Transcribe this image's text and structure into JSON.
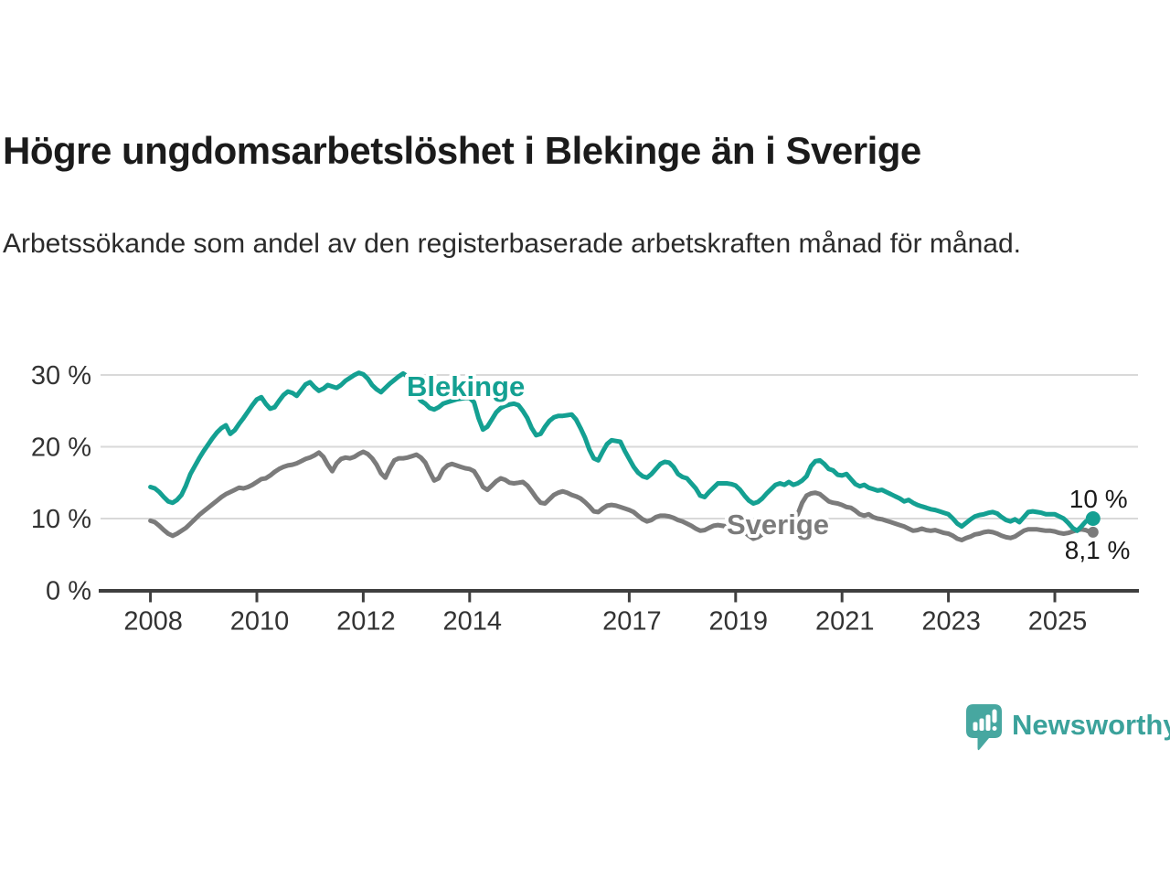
{
  "header": {
    "title": "Högre ungdomsarbetslöshet i Blekinge än i Sverige",
    "subtitle": "Arbetssökande som andel av den registerbaserade arbetskraften månad för månad."
  },
  "branding": {
    "logo_text": "Newsworthy",
    "logo_color": "#47a7a0",
    "text_color": "#3ba29b"
  },
  "chart_data": {
    "type": "line",
    "title": "Högre ungdomsarbetslöshet i Blekinge än i Sverige",
    "xlabel": "",
    "ylabel": "",
    "x_start": "2008-01",
    "x_end": "2025-09",
    "points_per_year": 12,
    "ylim": [
      0,
      32
    ],
    "grid": true,
    "ytick_values": [
      0,
      10,
      20,
      30
    ],
    "ytick_labels": [
      "0 %",
      "10 %",
      "20 %",
      "30 %"
    ],
    "xtick_years": [
      2008,
      2010,
      2012,
      2014,
      2017,
      2019,
      2021,
      2023,
      2025
    ],
    "legend_position": "inline-labels",
    "series": [
      {
        "name": "Sverige",
        "color": "#7b7b7b",
        "end_label": "8,1 %",
        "values": [
          9.7,
          9.5,
          9.0,
          8.4,
          7.9,
          7.6,
          7.9,
          8.3,
          8.7,
          9.3,
          9.9,
          10.5,
          11.0,
          11.5,
          12.0,
          12.5,
          13.0,
          13.4,
          13.7,
          14.0,
          14.3,
          14.2,
          14.4,
          14.7,
          15.1,
          15.5,
          15.6,
          16.0,
          16.5,
          16.9,
          17.2,
          17.4,
          17.5,
          17.7,
          18.0,
          18.3,
          18.5,
          18.8,
          19.2,
          18.6,
          17.5,
          16.6,
          17.7,
          18.3,
          18.5,
          18.4,
          18.6,
          19.0,
          19.3,
          19.0,
          18.4,
          17.5,
          16.3,
          15.7,
          17.0,
          18.1,
          18.4,
          18.4,
          18.5,
          18.7,
          18.9,
          18.5,
          17.8,
          16.5,
          15.3,
          15.6,
          16.8,
          17.4,
          17.6,
          17.4,
          17.2,
          17.0,
          16.9,
          16.6,
          15.6,
          14.4,
          14.0,
          14.6,
          15.2,
          15.6,
          15.4,
          15.0,
          14.9,
          15.0,
          15.1,
          14.6,
          13.8,
          12.9,
          12.2,
          12.1,
          12.7,
          13.3,
          13.6,
          13.8,
          13.6,
          13.3,
          13.1,
          12.8,
          12.3,
          11.7,
          11.0,
          10.9,
          11.4,
          11.8,
          11.9,
          11.8,
          11.6,
          11.4,
          11.2,
          10.9,
          10.4,
          9.9,
          9.6,
          9.8,
          10.2,
          10.4,
          10.4,
          10.3,
          10.1,
          9.8,
          9.6,
          9.3,
          9.0,
          8.6,
          8.3,
          8.4,
          8.7,
          9.0,
          9.1,
          9.0,
          8.9,
          8.8,
          8.7,
          8.5,
          8.1,
          7.6,
          7.2,
          7.4,
          7.8,
          8.3,
          8.7,
          9.0,
          9.2,
          9.4,
          9.6,
          9.9,
          10.6,
          12.2,
          13.2,
          13.5,
          13.6,
          13.4,
          12.9,
          12.4,
          12.2,
          12.1,
          11.9,
          11.6,
          11.5,
          11.1,
          10.6,
          10.4,
          10.6,
          10.2,
          10.0,
          9.9,
          9.7,
          9.5,
          9.3,
          9.1,
          8.9,
          8.6,
          8.3,
          8.4,
          8.6,
          8.4,
          8.3,
          8.4,
          8.2,
          8.0,
          7.9,
          7.6,
          7.2,
          7.0,
          7.3,
          7.5,
          7.8,
          7.9,
          8.1,
          8.2,
          8.1,
          7.9,
          7.6,
          7.4,
          7.3,
          7.5,
          7.9,
          8.3,
          8.5,
          8.5,
          8.5,
          8.4,
          8.3,
          8.3,
          8.2,
          8.0,
          7.9,
          8.0,
          8.2,
          8.4,
          8.5,
          8.4,
          8.1
        ]
      },
      {
        "name": "Blekinge",
        "color": "#14a092",
        "end_label": "10 %",
        "values": [
          14.4,
          14.2,
          13.7,
          13.0,
          12.4,
          12.2,
          12.6,
          13.3,
          14.6,
          16.2,
          17.3,
          18.4,
          19.4,
          20.3,
          21.2,
          22.0,
          22.6,
          23.0,
          21.8,
          22.3,
          23.2,
          24.0,
          24.9,
          25.8,
          26.6,
          26.9,
          26.0,
          25.3,
          25.5,
          26.4,
          27.2,
          27.7,
          27.5,
          27.1,
          27.9,
          28.7,
          29.0,
          28.3,
          27.8,
          28.1,
          28.6,
          28.4,
          28.2,
          28.6,
          29.2,
          29.6,
          30.0,
          30.3,
          30.1,
          29.5,
          28.6,
          28.0,
          27.6,
          28.2,
          28.8,
          29.3,
          29.8,
          30.2,
          29.8,
          29.0,
          27.3,
          26.4,
          26.0,
          25.4,
          25.2,
          25.5,
          26.0,
          26.2,
          26.4,
          26.6,
          26.7,
          26.8,
          26.8,
          26.2,
          24.0,
          22.4,
          22.8,
          23.8,
          24.8,
          25.4,
          25.7,
          25.9,
          26.0,
          25.8,
          25.0,
          24.0,
          22.6,
          21.6,
          21.8,
          22.8,
          23.6,
          24.1,
          24.3,
          24.3,
          24.4,
          24.5,
          23.8,
          22.6,
          21.3,
          19.6,
          18.4,
          18.1,
          19.3,
          20.4,
          20.9,
          20.8,
          20.7,
          19.4,
          18.3,
          17.2,
          16.4,
          15.9,
          15.7,
          16.2,
          16.9,
          17.6,
          17.9,
          17.8,
          17.2,
          16.2,
          15.8,
          15.6,
          14.9,
          14.2,
          13.2,
          13.0,
          13.7,
          14.3,
          14.9,
          14.9,
          14.9,
          14.8,
          14.6,
          14.0,
          13.2,
          12.5,
          12.1,
          12.3,
          12.8,
          13.5,
          14.1,
          14.7,
          14.9,
          14.7,
          15.1,
          14.7,
          14.9,
          15.3,
          15.9,
          17.3,
          18.0,
          18.1,
          17.6,
          16.9,
          16.7,
          16.1,
          16.0,
          16.2,
          15.5,
          14.8,
          14.5,
          14.7,
          14.3,
          14.1,
          13.9,
          14.0,
          13.7,
          13.4,
          13.1,
          12.8,
          12.4,
          12.6,
          12.2,
          11.9,
          11.7,
          11.5,
          11.3,
          11.2,
          11.0,
          10.8,
          10.6,
          10.0,
          9.3,
          8.9,
          9.4,
          9.9,
          10.3,
          10.5,
          10.6,
          10.8,
          10.9,
          10.7,
          10.2,
          9.8,
          9.6,
          9.9,
          9.5,
          10.2,
          10.9,
          11.0,
          10.9,
          10.8,
          10.6,
          10.6,
          10.6,
          10.3,
          10.0,
          9.4,
          8.7,
          8.3,
          8.9,
          9.6,
          10.0
        ]
      }
    ]
  }
}
